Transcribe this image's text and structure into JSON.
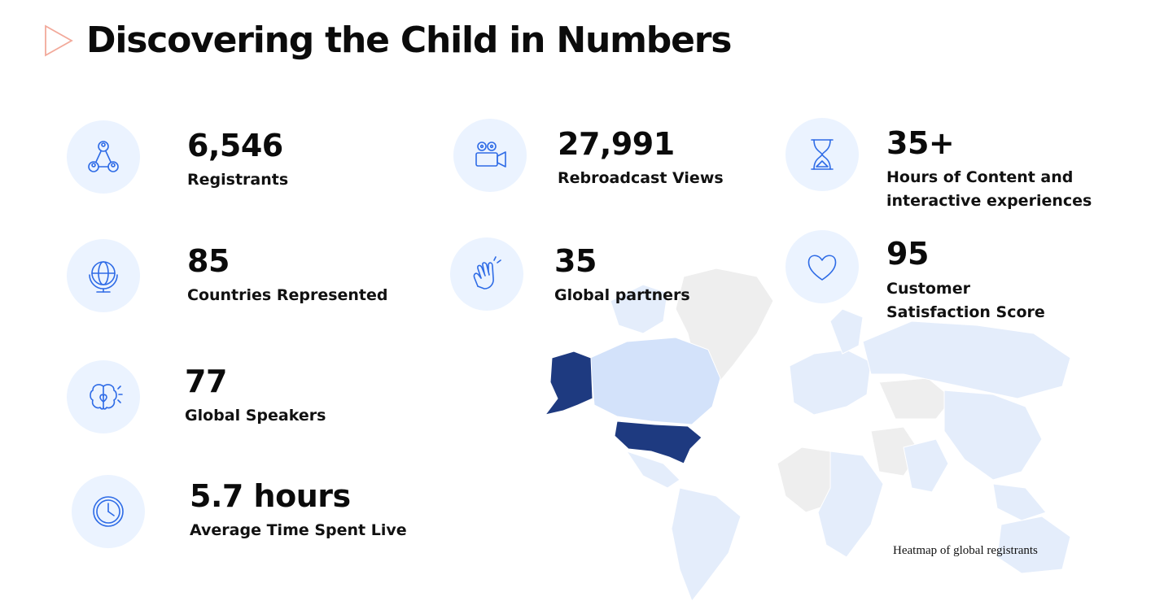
{
  "slide": {
    "title": "Discovering the Child in Numbers",
    "accent_color": "#f2a99a",
    "icon_color": "#2e6be6",
    "icon_bg": "#ebf3ff"
  },
  "stats": [
    {
      "value": "6,546",
      "label": "Registrants",
      "icon": "people-network-icon"
    },
    {
      "value": "27,991",
      "label": "Rebroadcast Views",
      "icon": "video-camera-icon"
    },
    {
      "value": "35+",
      "label_lines": [
        "Hours of Content and",
        "interactive experiences"
      ],
      "icon": "hourglass-icon"
    },
    {
      "value": "85",
      "label": "Countries Represented",
      "icon": "globe-icon"
    },
    {
      "value": "35",
      "label": "Global partners",
      "icon": "clapping-hands-icon"
    },
    {
      "value": "95",
      "label_lines": [
        "Customer",
        "Satisfaction Score"
      ],
      "icon": "heart-icon"
    },
    {
      "value": "77",
      "label": "Global Speakers",
      "icon": "brain-heart-icon"
    },
    {
      "value": "5.7 hours",
      "label": "Average Time Spent Live",
      "icon": "clock-icon"
    }
  ],
  "map": {
    "caption": "Heatmap of global registrants",
    "colors": {
      "high": "#1e3a80",
      "medium": "#d3e2fa",
      "low": "#e4edfb",
      "none": "#eeeeee"
    },
    "highlighted_regions": {
      "United States": "high",
      "Canada": "medium"
    }
  }
}
